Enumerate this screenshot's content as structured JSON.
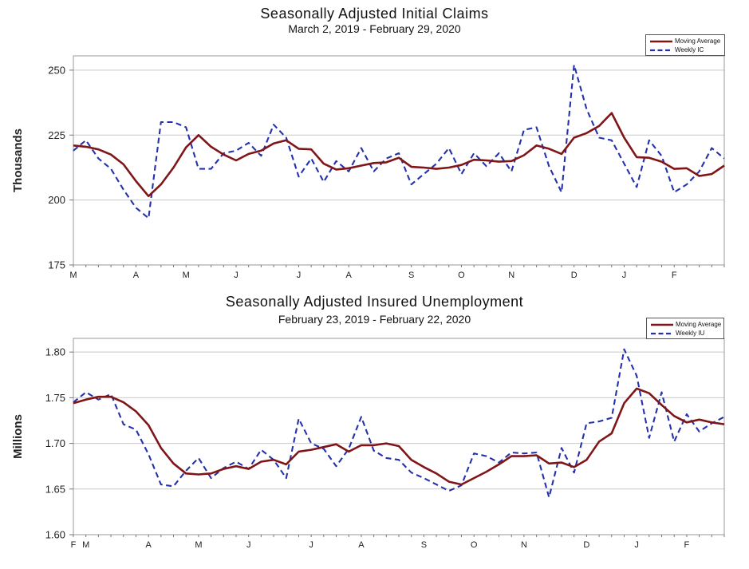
{
  "chart_data": [
    {
      "type": "line",
      "title": "Seasonally Adjusted Initial Claims",
      "subtitle": "March 2, 2019 - February 29, 2020",
      "ylabel": "Thousands",
      "xlabel": "",
      "ylim": [
        175,
        255.5
      ],
      "yticks": [
        175,
        200,
        225,
        250
      ],
      "ytick_labels": [
        "175",
        "200",
        "225",
        "250"
      ],
      "grid": "horizontal",
      "legend_position": "top-right",
      "x_unit": "week",
      "month_ticks": [
        {
          "label": "M",
          "week_index": 0
        },
        {
          "label": "A",
          "week_index": 5
        },
        {
          "label": "M",
          "week_index": 9
        },
        {
          "label": "J",
          "week_index": 13
        },
        {
          "label": "J",
          "week_index": 18
        },
        {
          "label": "A",
          "week_index": 22
        },
        {
          "label": "S",
          "week_index": 27
        },
        {
          "label": "O",
          "week_index": 31
        },
        {
          "label": "N",
          "week_index": 35
        },
        {
          "label": "D",
          "week_index": 40
        },
        {
          "label": "J",
          "week_index": 44
        },
        {
          "label": "F",
          "week_index": 48
        }
      ],
      "series": [
        {
          "name": "Moving Average",
          "style": "solid",
          "color": "#801518",
          "values": [
            221,
            220.5,
            219.5,
            217.5,
            213.75,
            207.25,
            201.5,
            206,
            212.5,
            220.25,
            225,
            220.5,
            217.5,
            215.25,
            217.75,
            219,
            221.75,
            223,
            219.75,
            219.5,
            214,
            211.75,
            212.25,
            213.25,
            214.25,
            214.5,
            216.25,
            212.75,
            212.5,
            212,
            212.5,
            213.5,
            215.5,
            215.25,
            214.75,
            215,
            217.25,
            221,
            219.75,
            217.75,
            224,
            225.75,
            228.5,
            233.5,
            224,
            216.5,
            216.25,
            214.75,
            212,
            212.25,
            209.25,
            210,
            213.25
          ]
        },
        {
          "name": "Weekly IC",
          "style": "dashed",
          "color": "#2431AB",
          "values": [
            219,
            223,
            216,
            212,
            204,
            197,
            193,
            230,
            230,
            228,
            212,
            212,
            218,
            219,
            222,
            217,
            229,
            224,
            209,
            216,
            207,
            215,
            211,
            220,
            211,
            216,
            218,
            206,
            210,
            214,
            220,
            210,
            218,
            213,
            218,
            211,
            227,
            228,
            213,
            203,
            252,
            235,
            224,
            223,
            214,
            205,
            223,
            217,
            203,
            206,
            211,
            220,
            216
          ]
        }
      ]
    },
    {
      "type": "line",
      "title": "Seasonally Adjusted Insured Unemployment",
      "subtitle": "February 23, 2019 - February 22, 2020",
      "ylabel": "Millions",
      "xlabel": "",
      "ylim": [
        1.6,
        1.815
      ],
      "yticks": [
        1.6,
        1.65,
        1.7,
        1.75,
        1.8
      ],
      "ytick_labels": [
        "1.60",
        "1.65",
        "1.70",
        "1.75",
        "1.80"
      ],
      "grid": "horizontal",
      "legend_position": "top-right",
      "x_unit": "week",
      "month_ticks": [
        {
          "label": "F",
          "week_index": 0
        },
        {
          "label": "M",
          "week_index": 1
        },
        {
          "label": "A",
          "week_index": 6
        },
        {
          "label": "M",
          "week_index": 10
        },
        {
          "label": "J",
          "week_index": 14
        },
        {
          "label": "J",
          "week_index": 19
        },
        {
          "label": "A",
          "week_index": 23
        },
        {
          "label": "S",
          "week_index": 28
        },
        {
          "label": "O",
          "week_index": 32
        },
        {
          "label": "N",
          "week_index": 36
        },
        {
          "label": "D",
          "week_index": 41
        },
        {
          "label": "J",
          "week_index": 45
        },
        {
          "label": "F",
          "week_index": 49
        }
      ],
      "series": [
        {
          "name": "Moving Average",
          "style": "solid",
          "color": "#801518",
          "values": [
            1.744,
            1.748,
            1.751,
            1.751,
            1.745,
            1.735,
            1.72,
            1.695,
            1.678,
            1.667,
            1.666,
            1.667,
            1.672,
            1.675,
            1.672,
            1.68,
            1.682,
            1.677,
            1.691,
            1.693,
            1.696,
            1.699,
            1.691,
            1.698,
            1.698,
            1.7,
            1.697,
            1.682,
            1.674,
            1.667,
            1.658,
            1.655,
            1.662,
            1.669,
            1.677,
            1.686,
            1.686,
            1.687,
            1.678,
            1.679,
            1.674,
            1.682,
            1.702,
            1.711,
            1.744,
            1.76,
            1.755,
            1.742,
            1.73,
            1.723,
            1.726,
            1.723,
            1.721
          ]
        },
        {
          "name": "Weekly IU",
          "style": "dashed",
          "color": "#2431AB",
          "values": [
            1.745,
            1.756,
            1.748,
            1.754,
            1.721,
            1.715,
            1.688,
            1.655,
            1.653,
            1.67,
            1.684,
            1.662,
            1.673,
            1.68,
            1.672,
            1.693,
            1.682,
            1.662,
            1.727,
            1.7,
            1.694,
            1.675,
            1.694,
            1.729,
            1.692,
            1.684,
            1.682,
            1.668,
            1.662,
            1.655,
            1.648,
            1.654,
            1.689,
            1.686,
            1.679,
            1.69,
            1.689,
            1.69,
            1.641,
            1.695,
            1.668,
            1.722,
            1.724,
            1.728,
            1.803,
            1.774,
            1.706,
            1.756,
            1.702,
            1.732,
            1.713,
            1.722,
            1.729
          ]
        }
      ]
    }
  ]
}
